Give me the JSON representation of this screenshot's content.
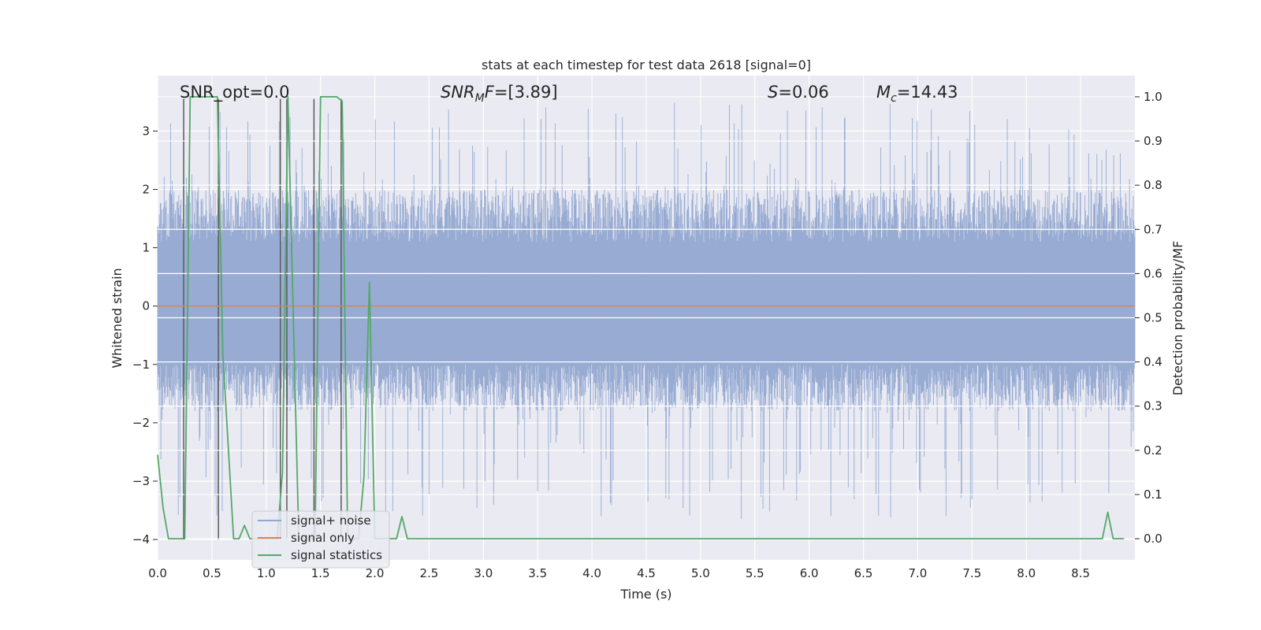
{
  "chart_data": {
    "type": "line",
    "title": "stats at each timestep for test data 2618 [signal=0]",
    "xlabel": "Time (s)",
    "ylabel": "Whitened strain",
    "y2label": "Detection probability/MF",
    "xlim": [
      0.0,
      9.0
    ],
    "ylim": [
      -4.35,
      3.95
    ],
    "y2lim": [
      -0.048,
      1.048
    ],
    "xticks": [
      "0.0",
      "0.5",
      "1.0",
      "1.5",
      "2.0",
      "2.5",
      "3.0",
      "3.5",
      "4.0",
      "4.5",
      "5.0",
      "5.5",
      "6.0",
      "6.5",
      "7.0",
      "7.5",
      "8.0",
      "8.5"
    ],
    "yticks": [
      "3",
      "2",
      "1",
      "0",
      "−1",
      "−2",
      "−3",
      "−4"
    ],
    "y2ticks": [
      "1.0",
      "0.9",
      "0.8",
      "0.7",
      "0.6",
      "0.5",
      "0.4",
      "0.3",
      "0.2",
      "0.1",
      "0.0"
    ],
    "grid": true,
    "legend_position": "lower-left",
    "annotations": {
      "snr_opt": "SNR_opt=0.0",
      "snr_mf_main": "SNR",
      "snr_mf_sub": "M",
      "snr_mf_tail": "F=[3.89]",
      "s_var": "S",
      "s_value": "=0.06",
      "mc_var": "M",
      "mc_sub": "c",
      "mc_value": "=14.43"
    },
    "series": [
      {
        "name": "signal+ noise",
        "color": "#92a8d1",
        "kind": "noise",
        "x_range": [
          0.0,
          9.0
        ],
        "amplitude_range": [
          -3.65,
          3.5
        ],
        "typical_band": [
          -1.8,
          2.0
        ]
      },
      {
        "name": "signal only",
        "color": "#dd8452",
        "kind": "constant",
        "x": [
          0.0,
          9.0
        ],
        "y": [
          0.0,
          0.0
        ]
      },
      {
        "name": "signal statistics",
        "color": "#55a868",
        "axis": "right",
        "x": [
          0.0,
          0.05,
          0.1,
          0.2,
          0.25,
          0.3,
          0.35,
          0.45,
          0.55,
          0.6,
          0.7,
          0.75,
          0.8,
          0.85,
          0.9,
          1.0,
          1.1,
          1.15,
          1.2,
          1.25,
          1.3,
          1.4,
          1.45,
          1.5,
          1.65,
          1.7,
          1.75,
          1.85,
          1.9,
          1.95,
          2.0,
          2.1,
          2.2,
          2.25,
          2.3,
          2.4,
          2.5,
          8.6,
          8.7,
          8.75,
          8.8,
          8.9
        ],
        "y": [
          0.19,
          0.07,
          0.0,
          0.0,
          0.0,
          1.0,
          1.0,
          1.0,
          1.0,
          0.42,
          0.0,
          0.0,
          0.03,
          0.0,
          0.0,
          0.0,
          0.0,
          0.15,
          1.0,
          0.5,
          0.0,
          0.0,
          0.0,
          1.0,
          1.0,
          0.99,
          0.0,
          0.0,
          0.14,
          0.58,
          0.0,
          0.0,
          0.0,
          0.05,
          0.0,
          0.0,
          0.0,
          0.0,
          0.0,
          0.06,
          0.0,
          0.0
        ]
      }
    ],
    "markers": {
      "color": "#5a5a5a",
      "x": [
        0.24,
        0.56,
        1.13,
        1.19,
        1.44,
        1.69
      ],
      "y_range": [
        -4.0,
        3.55
      ]
    }
  }
}
